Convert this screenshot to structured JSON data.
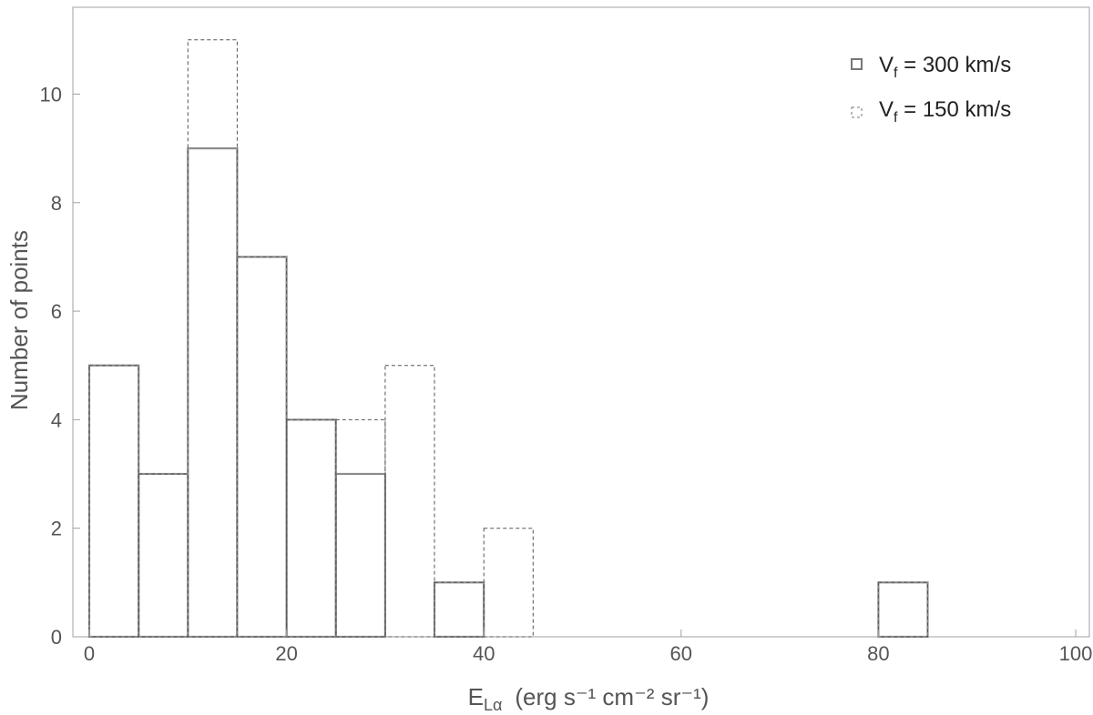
{
  "chart_data": {
    "type": "bar",
    "subtype": "histogram",
    "title": "",
    "xlabel": {
      "main": "E",
      "subscript": "Lα",
      "units": "(erg s⁻¹ cm⁻² sr⁻¹)"
    },
    "ylabel": "Number of points",
    "xlim": [
      0,
      100
    ],
    "ylim": [
      0,
      11.6
    ],
    "xticks": [
      0,
      20,
      40,
      60,
      80,
      100
    ],
    "yticks": [
      0,
      2,
      4,
      6,
      8,
      10
    ],
    "bin_width": 5,
    "bin_edges": [
      0,
      5,
      10,
      15,
      20,
      25,
      30,
      35,
      40,
      45,
      50,
      55,
      60,
      65,
      70,
      75,
      80,
      85,
      90,
      95,
      100
    ],
    "grid": false,
    "legend_position": "top-right",
    "series": [
      {
        "name": "Vf = 300 km/s",
        "legend_main": "V",
        "legend_sub": "f",
        "legend_rest": " = 300 km/s",
        "style": "solid",
        "color": "#8c8c8c",
        "values": [
          5,
          3,
          9,
          7,
          4,
          3,
          0,
          1,
          0,
          0,
          0,
          0,
          0,
          0,
          0,
          0,
          1,
          0,
          0,
          0
        ]
      },
      {
        "name": "Vf = 150 km/s",
        "legend_main": "V",
        "legend_sub": "f",
        "legend_rest": " = 150 km/s",
        "style": "dashed",
        "color": "#555555",
        "values": [
          5,
          3,
          11,
          7,
          4,
          4,
          5,
          1,
          2,
          0,
          0,
          0,
          0,
          0,
          0,
          0,
          1,
          0,
          0,
          0
        ]
      }
    ]
  }
}
